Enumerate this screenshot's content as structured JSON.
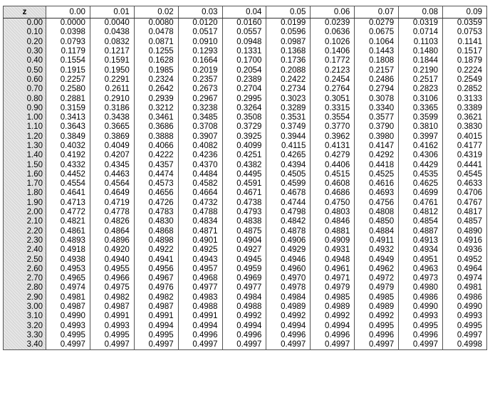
{
  "table": {
    "corner_label": "z",
    "columns": [
      "0.00",
      "0.01",
      "0.02",
      "0.03",
      "0.04",
      "0.05",
      "0.06",
      "0.07",
      "0.08",
      "0.09"
    ],
    "rows": [
      {
        "z": "0.00",
        "v": [
          "0.0000",
          "0.0040",
          "0.0080",
          "0.0120",
          "0.0160",
          "0.0199",
          "0.0239",
          "0.0279",
          "0.0319",
          "0.0359"
        ]
      },
      {
        "z": "0.10",
        "v": [
          "0.0398",
          "0.0438",
          "0.0478",
          "0.0517",
          "0.0557",
          "0.0596",
          "0.0636",
          "0.0675",
          "0.0714",
          "0.0753"
        ]
      },
      {
        "z": "0.20",
        "v": [
          "0.0793",
          "0.0832",
          "0.0871",
          "0.0910",
          "0.0948",
          "0.0987",
          "0.1026",
          "0.1064",
          "0.1103",
          "0.1141"
        ]
      },
      {
        "z": "0.30",
        "v": [
          "0.1179",
          "0.1217",
          "0.1255",
          "0.1293",
          "0.1331",
          "0.1368",
          "0.1406",
          "0.1443",
          "0.1480",
          "0.1517"
        ]
      },
      {
        "z": "0.40",
        "v": [
          "0.1554",
          "0.1591",
          "0.1628",
          "0.1664",
          "0.1700",
          "0.1736",
          "0.1772",
          "0.1808",
          "0.1844",
          "0.1879"
        ]
      },
      {
        "z": "0.50",
        "v": [
          "0.1915",
          "0.1950",
          "0.1985",
          "0.2019",
          "0.2054",
          "0.2088",
          "0.2123",
          "0.2157",
          "0.2190",
          "0.2224"
        ]
      },
      {
        "z": "0.60",
        "v": [
          "0.2257",
          "0.2291",
          "0.2324",
          "0.2357",
          "0.2389",
          "0.2422",
          "0.2454",
          "0.2486",
          "0.2517",
          "0.2549"
        ]
      },
      {
        "z": "0.70",
        "v": [
          "0.2580",
          "0.2611",
          "0.2642",
          "0.2673",
          "0.2704",
          "0.2734",
          "0.2764",
          "0.2794",
          "0.2823",
          "0.2852"
        ]
      },
      {
        "z": "0.80",
        "v": [
          "0.2881",
          "0.2910",
          "0.2939",
          "0.2967",
          "0.2995",
          "0.3023",
          "0.3051",
          "0.3078",
          "0.3106",
          "0.3133"
        ]
      },
      {
        "z": "0.90",
        "v": [
          "0.3159",
          "0.3186",
          "0.3212",
          "0.3238",
          "0.3264",
          "0.3289",
          "0.3315",
          "0.3340",
          "0.3365",
          "0.3389"
        ]
      },
      {
        "z": "1.00",
        "v": [
          "0.3413",
          "0.3438",
          "0.3461",
          "0.3485",
          "0.3508",
          "0.3531",
          "0.3554",
          "0.3577",
          "0.3599",
          "0.3621"
        ]
      },
      {
        "z": "1.10",
        "v": [
          "0.3643",
          "0.3665",
          "0.3686",
          "0.3708",
          "0.3729",
          "0.3749",
          "0.3770",
          "0.3790",
          "0.3810",
          "0.3830"
        ]
      },
      {
        "z": "1.20",
        "v": [
          "0.3849",
          "0.3869",
          "0.3888",
          "0.3907",
          "0.3925",
          "0.3944",
          "0.3962",
          "0.3980",
          "0.3997",
          "0.4015"
        ]
      },
      {
        "z": "1.30",
        "v": [
          "0.4032",
          "0.4049",
          "0.4066",
          "0.4082",
          "0.4099",
          "0.4115",
          "0.4131",
          "0.4147",
          "0.4162",
          "0.4177"
        ]
      },
      {
        "z": "1.40",
        "v": [
          "0.4192",
          "0.4207",
          "0.4222",
          "0.4236",
          "0.4251",
          "0.4265",
          "0.4279",
          "0.4292",
          "0.4306",
          "0.4319"
        ]
      },
      {
        "z": "1.50",
        "v": [
          "0.4332",
          "0.4345",
          "0.4357",
          "0.4370",
          "0.4382",
          "0.4394",
          "0.4406",
          "0.4418",
          "0.4429",
          "0.4441"
        ]
      },
      {
        "z": "1.60",
        "v": [
          "0.4452",
          "0.4463",
          "0.4474",
          "0.4484",
          "0.4495",
          "0.4505",
          "0.4515",
          "0.4525",
          "0.4535",
          "0.4545"
        ]
      },
      {
        "z": "1.70",
        "v": [
          "0.4554",
          "0.4564",
          "0.4573",
          "0.4582",
          "0.4591",
          "0.4599",
          "0.4608",
          "0.4616",
          "0.4625",
          "0.4633"
        ]
      },
      {
        "z": "1.80",
        "v": [
          "0.4641",
          "0.4649",
          "0.4656",
          "0.4664",
          "0.4671",
          "0.4678",
          "0.4686",
          "0.4693",
          "0.4699",
          "0.4706"
        ]
      },
      {
        "z": "1.90",
        "v": [
          "0.4713",
          "0.4719",
          "0.4726",
          "0.4732",
          "0.4738",
          "0.4744",
          "0.4750",
          "0.4756",
          "0.4761",
          "0.4767"
        ]
      },
      {
        "z": "2.00",
        "v": [
          "0.4772",
          "0.4778",
          "0.4783",
          "0.4788",
          "0.4793",
          "0.4798",
          "0.4803",
          "0.4808",
          "0.4812",
          "0.4817"
        ]
      },
      {
        "z": "2.10",
        "v": [
          "0.4821",
          "0.4826",
          "0.4830",
          "0.4834",
          "0.4838",
          "0.4842",
          "0.4846",
          "0.4850",
          "0.4854",
          "0.4857"
        ]
      },
      {
        "z": "2.20",
        "v": [
          "0.4861",
          "0.4864",
          "0.4868",
          "0.4871",
          "0.4875",
          "0.4878",
          "0.4881",
          "0.4884",
          "0.4887",
          "0.4890"
        ]
      },
      {
        "z": "2.30",
        "v": [
          "0.4893",
          "0.4896",
          "0.4898",
          "0.4901",
          "0.4904",
          "0.4906",
          "0.4909",
          "0.4911",
          "0.4913",
          "0.4916"
        ]
      },
      {
        "z": "2.40",
        "v": [
          "0.4918",
          "0.4920",
          "0.4922",
          "0.4925",
          "0.4927",
          "0.4929",
          "0.4931",
          "0.4932",
          "0.4934",
          "0.4936"
        ]
      },
      {
        "z": "2.50",
        "v": [
          "0.4938",
          "0.4940",
          "0.4941",
          "0.4943",
          "0.4945",
          "0.4946",
          "0.4948",
          "0.4949",
          "0.4951",
          "0.4952"
        ]
      },
      {
        "z": "2.60",
        "v": [
          "0.4953",
          "0.4955",
          "0.4956",
          "0.4957",
          "0.4959",
          "0.4960",
          "0.4961",
          "0.4962",
          "0.4963",
          "0.4964"
        ]
      },
      {
        "z": "2.70",
        "v": [
          "0.4965",
          "0.4966",
          "0.4967",
          "0.4968",
          "0.4969",
          "0.4970",
          "0.4971",
          "0.4972",
          "0.4973",
          "0.4974"
        ]
      },
      {
        "z": "2.80",
        "v": [
          "0.4974",
          "0.4975",
          "0.4976",
          "0.4977",
          "0.4977",
          "0.4978",
          "0.4979",
          "0.4979",
          "0.4980",
          "0.4981"
        ]
      },
      {
        "z": "2.90",
        "v": [
          "0.4981",
          "0.4982",
          "0.4982",
          "0.4983",
          "0.4984",
          "0.4984",
          "0.4985",
          "0.4985",
          "0.4986",
          "0.4986"
        ]
      },
      {
        "z": "3.00",
        "v": [
          "0.4987",
          "0.4987",
          "0.4987",
          "0.4988",
          "0.4988",
          "0.4989",
          "0.4989",
          "0.4989",
          "0.4990",
          "0.4990"
        ]
      },
      {
        "z": "3.10",
        "v": [
          "0.4990",
          "0.4991",
          "0.4991",
          "0.4991",
          "0.4992",
          "0.4992",
          "0.4992",
          "0.4992",
          "0.4993",
          "0.4993"
        ]
      },
      {
        "z": "3.20",
        "v": [
          "0.4993",
          "0.4993",
          "0.4994",
          "0.4994",
          "0.4994",
          "0.4994",
          "0.4994",
          "0.4995",
          "0.4995",
          "0.4995"
        ]
      },
      {
        "z": "3.30",
        "v": [
          "0.4995",
          "0.4995",
          "0.4995",
          "0.4996",
          "0.4996",
          "0.4996",
          "0.4996",
          "0.4996",
          "0.4996",
          "0.4997"
        ]
      },
      {
        "z": "3.40",
        "v": [
          "0.4997",
          "0.4997",
          "0.4997",
          "0.4997",
          "0.4997",
          "0.4997",
          "0.4997",
          "0.4997",
          "0.4997",
          "0.4998"
        ]
      }
    ]
  }
}
